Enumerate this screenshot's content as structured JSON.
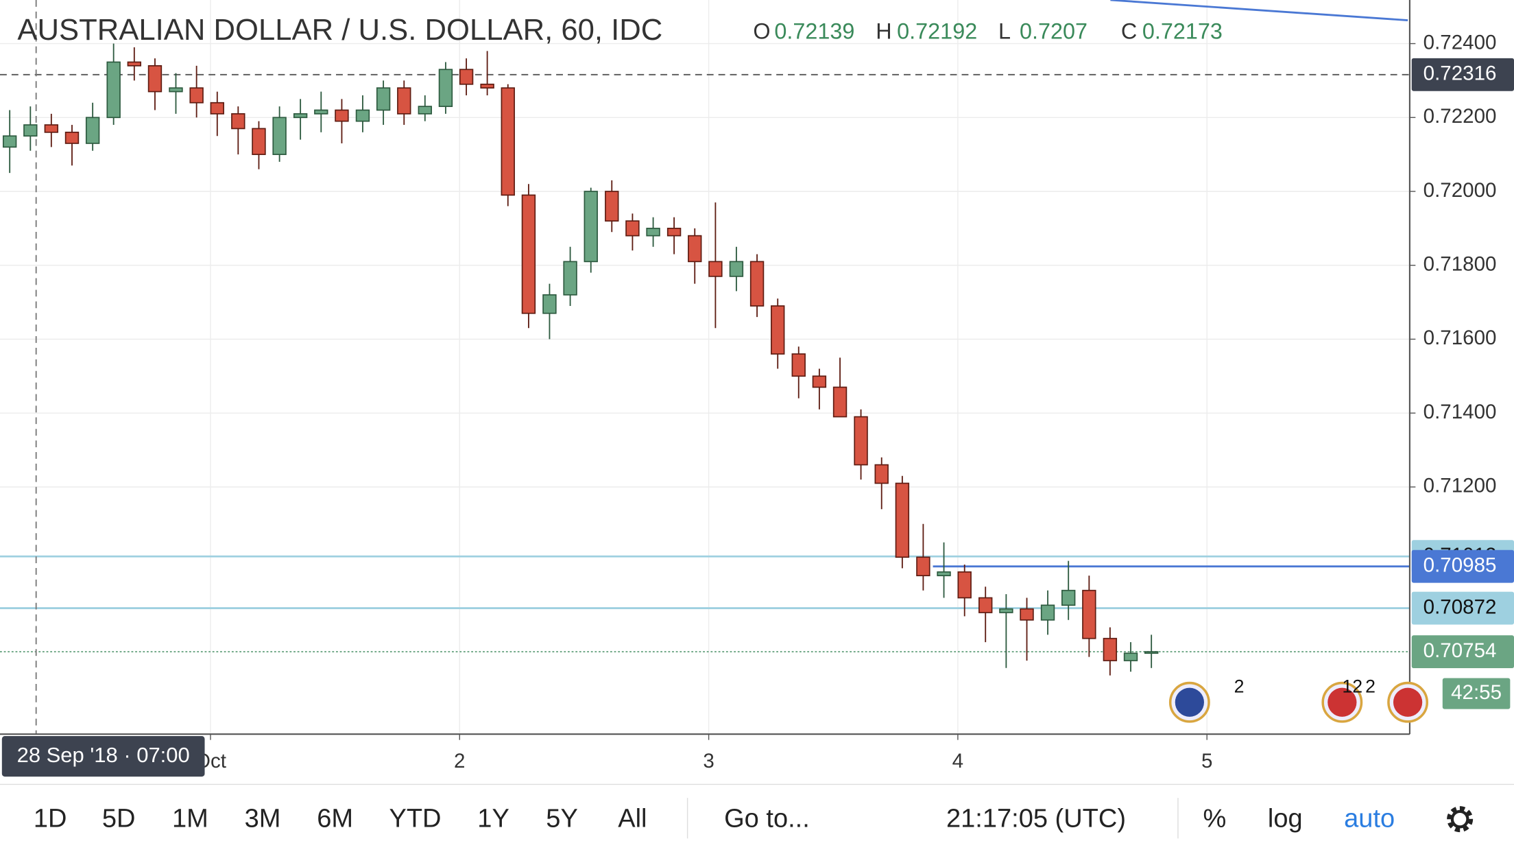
{
  "chart_data": {
    "type": "candlestick",
    "title": "AUSTRALIAN DOLLAR / U.S. DOLLAR, 60, IDC",
    "ohlc_legend": [
      {
        "label": "O",
        "value": 0.72139
      },
      {
        "label": "H",
        "value": 0.72192
      },
      {
        "label": "L",
        "value": 0.7207
      },
      {
        "label": "C",
        "value": 0.72173
      }
    ],
    "x": [
      0.194,
      0.277,
      0.361,
      0.444,
      0.527,
      0.611,
      0.694,
      0.777,
      0.861,
      0.944,
      1.027,
      1.111,
      1.194,
      1.277,
      1.361,
      1.444,
      1.527,
      1.611,
      1.694,
      1.777,
      1.861,
      1.944,
      2.027,
      2.111,
      2.194,
      2.277,
      2.361,
      2.444,
      2.527,
      2.611,
      2.694,
      2.777,
      2.861,
      2.944,
      3.027,
      3.111,
      3.194,
      3.277,
      3.361,
      3.444,
      3.527,
      3.611,
      3.694,
      3.777,
      3.861,
      3.944,
      4.027,
      4.111,
      4.194,
      4.277,
      4.361,
      4.444,
      4.527,
      4.611,
      4.694,
      4.777
    ],
    "open": [
      0.7212,
      0.7215,
      0.7218,
      0.7216,
      0.7213,
      0.722,
      0.7235,
      0.7234,
      0.7227,
      0.7228,
      0.7224,
      0.7221,
      0.7217,
      0.721,
      0.722,
      0.7221,
      0.7222,
      0.7219,
      0.7222,
      0.7228,
      0.7221,
      0.7223,
      0.7233,
      0.7229,
      0.7228,
      0.7199,
      0.7167,
      0.7172,
      0.7181,
      0.72,
      0.7192,
      0.7188,
      0.719,
      0.7188,
      0.7181,
      0.7177,
      0.7181,
      0.7169,
      0.7156,
      0.715,
      0.7147,
      0.7139,
      0.7126,
      0.7121,
      0.7101,
      0.7096,
      0.7097,
      0.709,
      0.7086,
      0.7087,
      0.7084,
      0.7088,
      0.7092,
      0.7079,
      0.7073,
      0.7075
    ],
    "high": [
      0.7222,
      0.7223,
      0.7221,
      0.7218,
      0.7224,
      0.724,
      0.7239,
      0.7236,
      0.7232,
      0.7234,
      0.7227,
      0.7223,
      0.7219,
      0.7223,
      0.7225,
      0.7227,
      0.7225,
      0.7226,
      0.723,
      0.723,
      0.7226,
      0.7235,
      0.7236,
      0.7238,
      0.7229,
      0.7202,
      0.7175,
      0.7185,
      0.7201,
      0.7203,
      0.7194,
      0.7193,
      0.7193,
      0.719,
      0.7197,
      0.7185,
      0.7183,
      0.7171,
      0.7158,
      0.7152,
      0.7155,
      0.7141,
      0.7128,
      0.7123,
      0.711,
      0.7105,
      0.7099,
      0.7093,
      0.7091,
      0.709,
      0.7092,
      0.71,
      0.7096,
      0.7082,
      0.7078,
      0.708
    ],
    "low": [
      0.7205,
      0.7211,
      0.7212,
      0.7207,
      0.7211,
      0.7218,
      0.723,
      0.7222,
      0.7221,
      0.722,
      0.7215,
      0.721,
      0.7206,
      0.7208,
      0.7214,
      0.7216,
      0.7213,
      0.7216,
      0.7218,
      0.7218,
      0.7219,
      0.7221,
      0.7226,
      0.7226,
      0.7196,
      0.7163,
      0.716,
      0.7169,
      0.7178,
      0.7189,
      0.7184,
      0.7185,
      0.7183,
      0.7175,
      0.7163,
      0.7173,
      0.7166,
      0.7152,
      0.7144,
      0.7141,
      0.714,
      0.7122,
      0.7114,
      0.7098,
      0.7092,
      0.709,
      0.7085,
      0.7078,
      0.7071,
      0.7073,
      0.708,
      0.7084,
      0.7074,
      0.7069,
      0.707,
      0.7071
    ],
    "close": [
      0.7215,
      0.7218,
      0.7216,
      0.7213,
      0.722,
      0.7235,
      0.7234,
      0.7227,
      0.7228,
      0.7224,
      0.7221,
      0.7217,
      0.721,
      0.722,
      0.7221,
      0.7222,
      0.7219,
      0.7222,
      0.7228,
      0.7221,
      0.7223,
      0.7233,
      0.7229,
      0.7228,
      0.7199,
      0.7167,
      0.7172,
      0.7181,
      0.72,
      0.7192,
      0.7188,
      0.719,
      0.7188,
      0.7181,
      0.7177,
      0.7181,
      0.7169,
      0.7156,
      0.715,
      0.7147,
      0.7139,
      0.7126,
      0.7121,
      0.7101,
      0.7096,
      0.7097,
      0.709,
      0.7086,
      0.7087,
      0.7084,
      0.7088,
      0.7092,
      0.7079,
      0.7073,
      0.7075,
      0.70754
    ],
    "up_color": "#6ba583",
    "down_color": "#d75442",
    "xlim": [
      0.155,
      5.814
    ],
    "xticks": [
      {
        "value": 1,
        "label": "Oct"
      },
      2,
      3,
      4,
      5
    ],
    "ylim": [
      0.70531,
      0.72518
    ],
    "yticks": [
      {
        "value": 0.724,
        "label": "0.72400"
      },
      {
        "value": 0.722,
        "label": "0.72200"
      },
      {
        "value": 0.72,
        "label": "0.72000"
      },
      {
        "value": 0.718,
        "label": "0.71800"
      },
      {
        "value": 0.716,
        "label": "0.71600"
      },
      {
        "value": 0.714,
        "label": "0.71400"
      },
      {
        "value": 0.712,
        "label": "0.71200"
      }
    ],
    "grid": true,
    "price_lines": [
      {
        "value": 0.72316,
        "color": "#555555",
        "label_bg": "#3d4350",
        "style": "dashed"
      },
      {
        "value": 0.71012,
        "color": "#9ed0e0",
        "label_bg": "#9ed0e0",
        "style": "solid"
      },
      {
        "value": 0.70985,
        "color": "#4a78d4",
        "label_bg": "#4a78d4",
        "style": "solid",
        "from_x": 3.9
      },
      {
        "value": 0.70872,
        "color": "#9ed0e0",
        "label_bg": "#9ed0e0",
        "style": "solid"
      },
      {
        "value": 0.70754,
        "color": "#6ba583",
        "label_bg": "#6ba583",
        "style": "dotted"
      }
    ],
    "countdown": "42:55",
    "crosshair_x": 0.3,
    "crosshair_label": "28 Sep '18 · 07:00",
    "event_badges": [
      "2",
      "12",
      "2"
    ]
  },
  "toolbar": {
    "ranges": [
      "1D",
      "5D",
      "1M",
      "3M",
      "6M",
      "YTD",
      "1Y",
      "5Y",
      "All"
    ],
    "goto": "Go to...",
    "clock": "21:17:05 (UTC)",
    "percent": "%",
    "log": "log",
    "auto": "auto"
  }
}
